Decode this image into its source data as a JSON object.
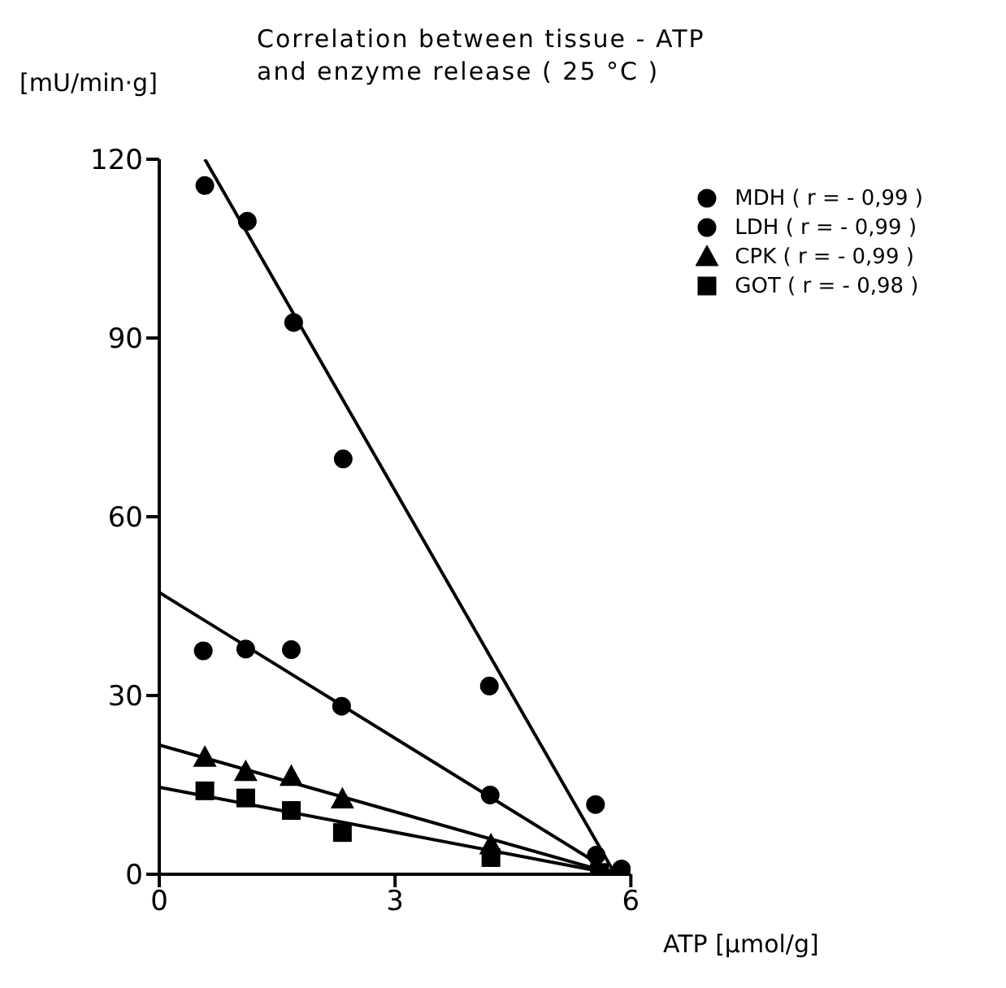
{
  "chart_data": {
    "type": "scatter",
    "title": "Correlation between tissue - ATP\nand enzyme release ( 25 °C )",
    "xlabel": "ATP [μmol/g]",
    "ylabel": "[mU/min·g]",
    "xlim": [
      0,
      6
    ],
    "xticks": [
      0,
      3,
      6
    ],
    "ylim": [
      0,
      120
    ],
    "yticks": [
      0,
      30,
      60,
      90,
      120
    ],
    "legend": "top right",
    "series": [
      {
        "name": "MDH ( r = - 0,99 )",
        "color": "#000000",
        "marker": "circle",
        "x": [
          0.58,
          1.12,
          1.71,
          2.34,
          4.2,
          5.55,
          5.88
        ],
        "values": [
          115.6,
          109.6,
          92.6,
          69.7,
          31.6,
          11.7,
          0.9
        ]
      },
      {
        "name": "LDH ( r = - 0,99 )",
        "color": "#000000",
        "marker": "circle",
        "x": [
          0.56,
          1.1,
          1.68,
          2.32,
          4.21,
          5.56
        ],
        "values": [
          37.5,
          37.8,
          37.7,
          28.2,
          13.3,
          3.2
        ]
      },
      {
        "name": "CPK ( r = - 0,99 )",
        "color": "#000000",
        "marker": "triangle",
        "x": [
          0.58,
          1.1,
          1.68,
          2.33,
          4.22
        ],
        "values": [
          19.6,
          17.2,
          16.4,
          12.6,
          4.9
        ]
      },
      {
        "name": "GOT ( r = - 0,98 )",
        "color": "#000000",
        "marker": "square",
        "x": [
          0.58,
          1.1,
          1.68,
          2.33,
          4.22,
          5.6
        ],
        "values": [
          14,
          12.8,
          10.7,
          7,
          2.8,
          0.3
        ]
      },
      {
        "type": "line",
        "color": "#000000",
        "x": [
          0.58,
          5.8
        ],
        "values": [
          120,
          0
        ]
      },
      {
        "type": "line",
        "color": "#000000",
        "x": [
          0,
          5.8
        ],
        "values": [
          47.3,
          0
        ]
      },
      {
        "type": "line",
        "color": "#000000",
        "x": [
          0,
          5.8
        ],
        "values": [
          21.7,
          0
        ]
      },
      {
        "type": "line",
        "color": "#000000",
        "x": [
          0,
          5.8
        ],
        "values": [
          14.6,
          0
        ]
      }
    ]
  }
}
